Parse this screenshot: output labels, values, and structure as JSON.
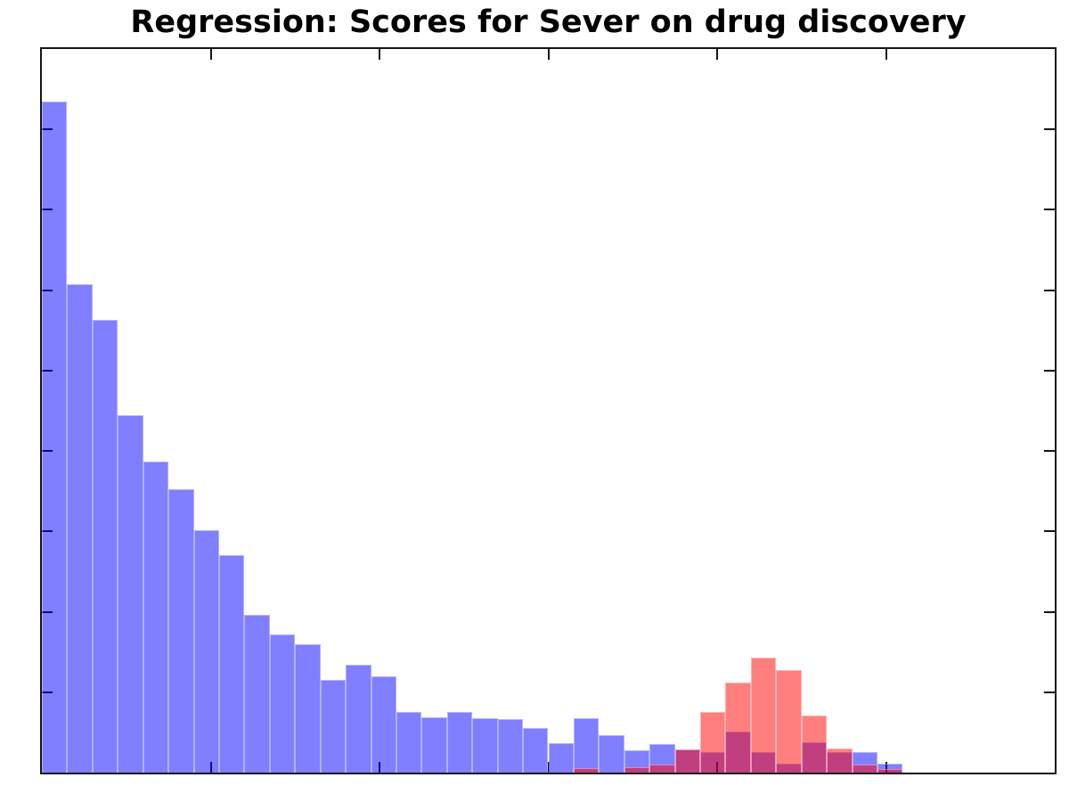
{
  "chart_data": {
    "type": "bar",
    "subtype": "overlaid-histogram",
    "title": "Regression: Scores for Sever on drug discovery",
    "xlabel": "",
    "ylabel": "",
    "x_tick_labels": [],
    "y_tick_labels": [],
    "bins": 40,
    "x_divisions": 6,
    "y_divisions": 9,
    "grid": "off",
    "legend": "none",
    "axes_note": "full box frame, inward tick marks on all four sides, no tick labels; bar heights measured in units of one y-axis tick interval",
    "ylim_units": [
      0,
      9
    ],
    "series": [
      {
        "name": "blue-distribution",
        "fill": "rgba(0,0,255,0.5)",
        "rendered_hex": "#8080FF",
        "values": [
          8.35,
          6.07,
          5.63,
          4.45,
          3.87,
          3.53,
          3.02,
          2.7,
          1.96,
          1.72,
          1.6,
          1.15,
          1.34,
          1.2,
          0.75,
          0.69,
          0.75,
          0.68,
          0.66,
          0.55,
          0.37,
          0.68,
          0.47,
          0.28,
          0.35,
          0.29,
          0.25,
          0.51,
          0.25,
          0.11,
          0.38,
          0.25,
          0.25,
          0.11,
          0,
          0,
          0,
          0,
          0,
          0
        ]
      },
      {
        "name": "red-distribution",
        "fill": "rgba(255,0,0,0.5)",
        "rendered_hex": "#FF8080",
        "values": [
          0,
          0,
          0,
          0,
          0,
          0,
          0,
          0,
          0,
          0,
          0,
          0,
          0,
          0,
          0,
          0,
          0,
          0,
          0,
          0,
          0,
          0.06,
          0,
          0.07,
          0.1,
          0.29,
          0.75,
          1.12,
          1.43,
          1.27,
          0.71,
          0.3,
          0.1,
          0.04,
          0,
          0,
          0,
          0,
          0,
          0
        ]
      }
    ],
    "overlap_rendered_hex": "#BF4080",
    "frame_color": "#141414",
    "background_color": "#FFFFFF",
    "title_color": "#000000"
  }
}
